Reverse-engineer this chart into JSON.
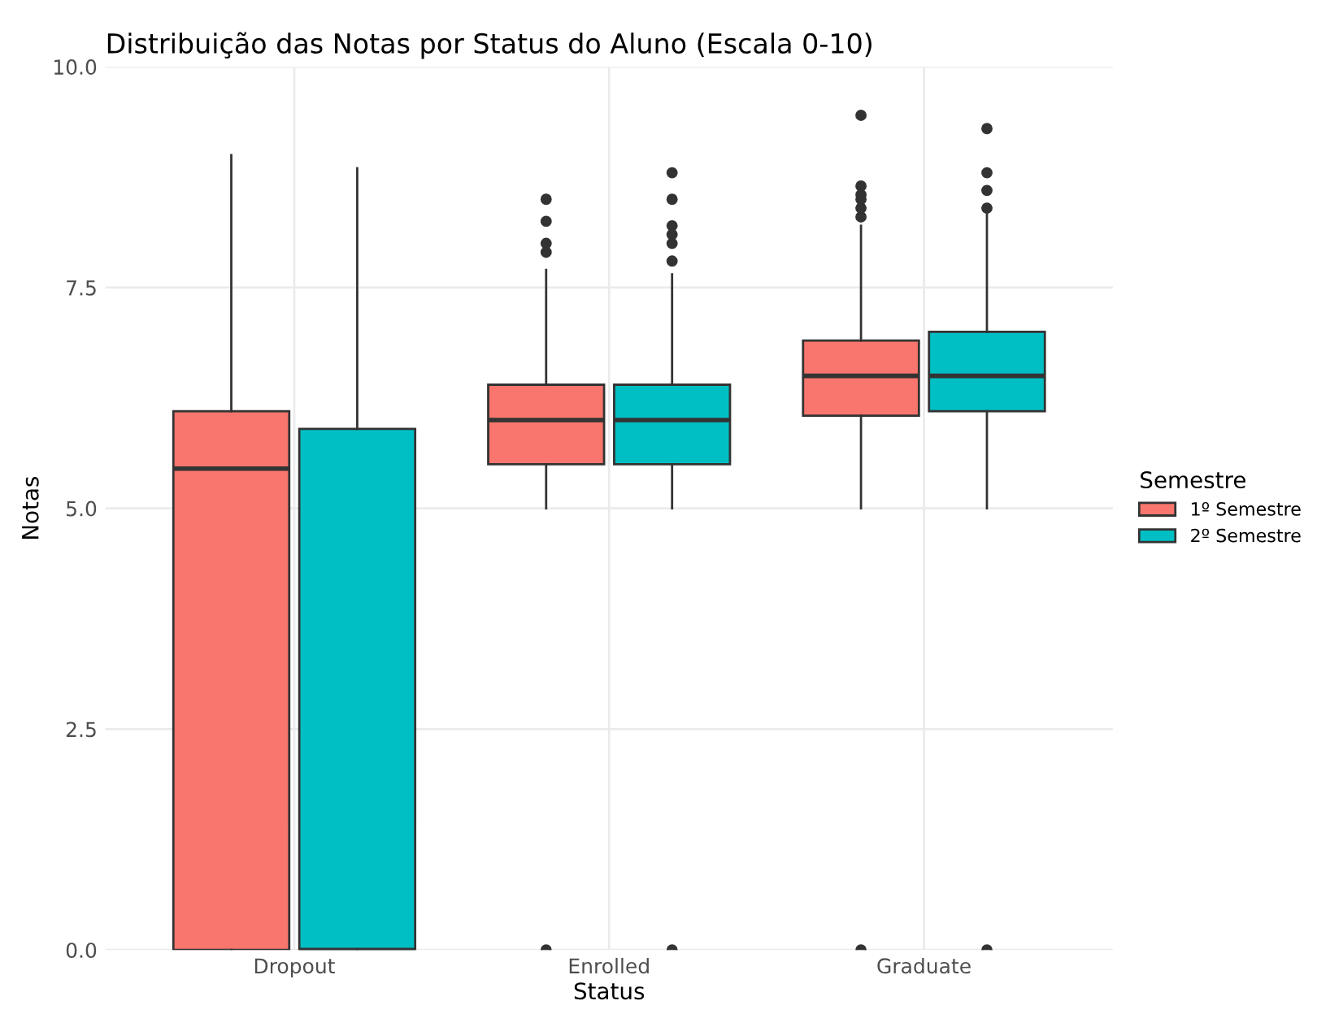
{
  "chart_data": {
    "type": "box",
    "title": "Distribuição das Notas por Status do Aluno (Escala 0-10)",
    "xlabel": "Status",
    "ylabel": "Notas",
    "legend_title": "Semestre",
    "legend": "right",
    "grid": true,
    "categories": [
      "Dropout",
      "Enrolled",
      "Graduate"
    ],
    "ylim": [
      0,
      10
    ],
    "yticks": [
      {
        "value": 0,
        "label": "0.0"
      },
      {
        "value": 2.5,
        "label": "2.5"
      },
      {
        "value": 5,
        "label": "5.0"
      },
      {
        "value": 7.5,
        "label": "7.5"
      },
      {
        "value": 10,
        "label": "10.0"
      }
    ],
    "series": [
      {
        "name": "1º Semestre",
        "color": "#f8766d",
        "boxes": [
          {
            "low": 0,
            "q1": 0,
            "median": 5.45,
            "q3": 6.1,
            "high": 9.0
          },
          {
            "low": 5.0,
            "q1": 5.5,
            "median": 6.0,
            "q3": 6.4,
            "high": 7.7,
            "outliers": [
              0,
              7.9,
              8.0,
              8.25,
              8.5
            ]
          },
          {
            "low": 5.0,
            "q1": 6.05,
            "median": 6.5,
            "q3": 6.9,
            "high": 8.2,
            "outliers": [
              0,
              8.3,
              8.4,
              8.5,
              8.55,
              8.65,
              9.45
            ]
          }
        ]
      },
      {
        "name": "2º Semestre",
        "color": "#00bfc4",
        "boxes": [
          {
            "low": 0,
            "q1": 0,
            "median": 0,
            "q3": 5.9,
            "high": 8.85
          },
          {
            "low": 5.0,
            "q1": 5.5,
            "median": 6.0,
            "q3": 6.4,
            "high": 7.65,
            "outliers": [
              0,
              7.8,
              8.0,
              8.1,
              8.2,
              8.5,
              8.8
            ]
          },
          {
            "low": 5.0,
            "q1": 6.1,
            "median": 6.5,
            "q3": 7.0,
            "high": 8.35,
            "outliers": [
              0,
              8.4,
              8.6,
              8.8,
              9.3
            ]
          }
        ]
      }
    ]
  }
}
